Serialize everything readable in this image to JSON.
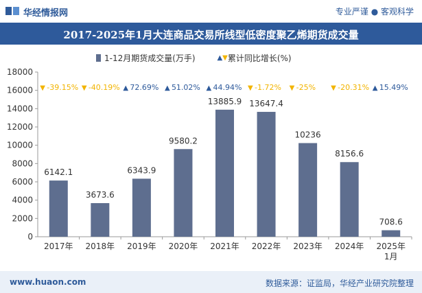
{
  "header": {
    "brand": "华经情报网",
    "slogan": "专业严谨 ● 客观科学"
  },
  "footer": {
    "website": "www.huaon.com",
    "source": "数据来源：证监局，华经产业研究院整理"
  },
  "colors": {
    "bar": "#5e6e8f",
    "up": "#2e5a9b",
    "down": "#f2b400",
    "title_bg": "#2e5a9b"
  },
  "chart_data": {
    "type": "bar",
    "title": "2017-2025年1月大连商品交易所线型低密度聚乙烯期货成交量",
    "categories": [
      "2017年",
      "2018年",
      "2019年",
      "2020年",
      "2021年",
      "2022年",
      "2023年",
      "2024年",
      "2025年1月"
    ],
    "series": [
      {
        "name": "1-12月期货成交量(万手)",
        "values": [
          6142.1,
          3673.6,
          6343.9,
          9580.2,
          13885.9,
          13647.4,
          10236,
          8156.6,
          708.6
        ],
        "labels": [
          "6142.1",
          "3673.6",
          "6343.9",
          "9580.2",
          "13885.9",
          "13647.4",
          "10236",
          "8156.6",
          "708.6"
        ]
      },
      {
        "name": "累计同比增长(%)",
        "values": [
          -39.15,
          -40.19,
          72.69,
          51.02,
          44.94,
          -1.72,
          -25,
          -20.31,
          15.49
        ],
        "labels": [
          "-39.15%",
          "-40.19%",
          "72.69%",
          "51.02%",
          "44.94%",
          "-1.72%",
          "-25%",
          "-20.31%",
          "15.49%"
        ]
      }
    ],
    "ylim": [
      0,
      18000
    ],
    "yticks": [
      0,
      2000,
      4000,
      6000,
      8000,
      10000,
      12000,
      14000,
      16000,
      18000
    ],
    "legend_position": "top",
    "grid": false
  }
}
